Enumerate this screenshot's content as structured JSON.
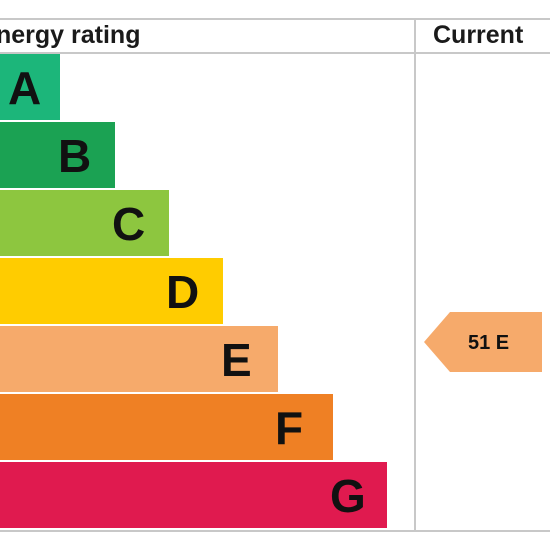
{
  "chart_data": {
    "type": "bar",
    "headers": {
      "rating": "nergy rating",
      "current": "Current"
    },
    "categories": [
      "A",
      "B",
      "C",
      "D",
      "E",
      "F",
      "G"
    ],
    "colors": [
      "#1cb67a",
      "#1ba253",
      "#8dc63f",
      "#ffcc00",
      "#f6aa6b",
      "#ef8024",
      "#e01a4f"
    ],
    "current": {
      "value": 51,
      "band": "E",
      "label": "51 E",
      "color": "#f6aa6b"
    }
  }
}
